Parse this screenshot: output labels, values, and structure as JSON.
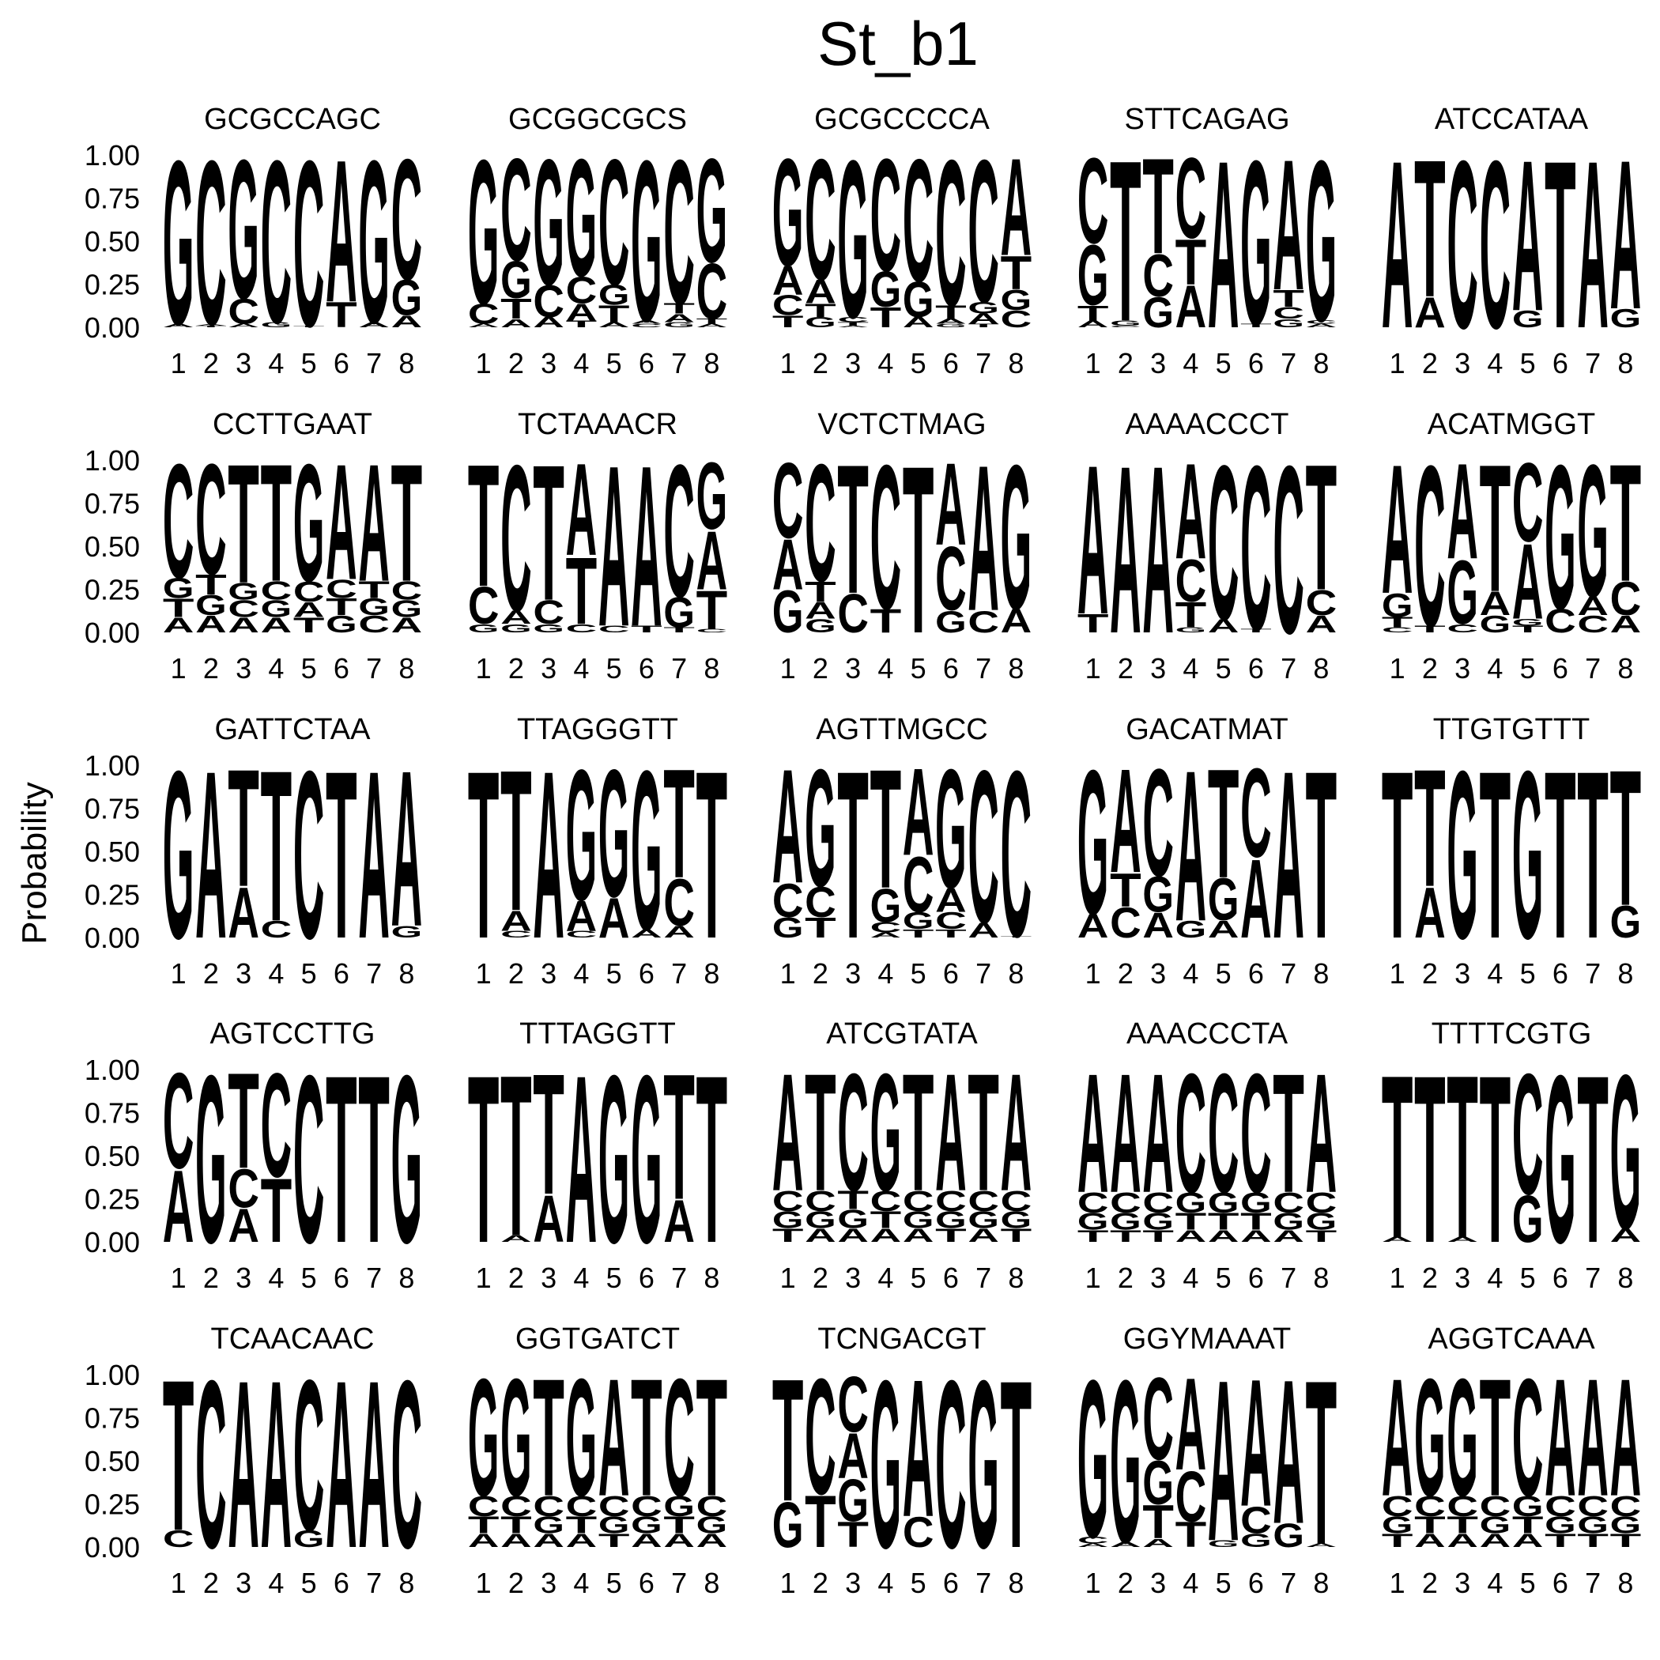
{
  "chart_data": {
    "type": "sequence-logo",
    "title": "St_b1",
    "ylabel": "Probability",
    "ylim": [
      0,
      1
    ],
    "y_ticks": [
      "0.00",
      "0.25",
      "0.50",
      "0.75",
      "1.00"
    ],
    "positions": [
      "1",
      "2",
      "3",
      "4",
      "5",
      "6",
      "7",
      "8"
    ],
    "colors": {
      "A": "#22c222",
      "C": "#1111ee",
      "G": "#f59c0a",
      "T": "#ee2a2a"
    },
    "motifs": [
      {
        "name": "GCGCCAGC",
        "pwm": [
          {
            "G": 0.98,
            "A": 0.02
          },
          {
            "C": 0.98,
            "T": 0.01,
            "A": 0.01
          },
          {
            "G": 0.83,
            "C": 0.15,
            "A": 0.02
          },
          {
            "C": 0.97,
            "G": 0.03
          },
          {
            "C": 0.99,
            "T": 0.01
          },
          {
            "A": 0.85,
            "T": 0.15
          },
          {
            "G": 0.97,
            "A": 0.03
          },
          {
            "C": 0.72,
            "G": 0.21,
            "A": 0.07
          }
        ]
      },
      {
        "name": "GCGGCGCS",
        "pwm": [
          {
            "G": 0.86,
            "C": 0.12,
            "A": 0.02
          },
          {
            "C": 0.61,
            "T": 0.12,
            "G": 0.22,
            "A": 0.05
          },
          {
            "G": 0.75,
            "C": 0.19,
            "A": 0.06
          },
          {
            "G": 0.7,
            "C": 0.16,
            "A": 0.1,
            "T": 0.04
          },
          {
            "C": 0.75,
            "T": 0.1,
            "G": 0.12,
            "A": 0.03
          },
          {
            "G": 0.96,
            "C": 0.02,
            "A": 0.02
          },
          {
            "C": 0.86,
            "T": 0.06,
            "A": 0.05,
            "G": 0.03
          },
          {
            "G": 0.62,
            "C": 0.33,
            "T": 0.03,
            "A": 0.02
          }
        ]
      },
      {
        "name": "GCGCCCCA",
        "pwm": [
          {
            "G": 0.64,
            "A": 0.17,
            "C": 0.12,
            "T": 0.07
          },
          {
            "C": 0.72,
            "A": 0.14,
            "T": 0.08,
            "G": 0.06
          },
          {
            "G": 0.94,
            "C": 0.03,
            "T": 0.02,
            "A": 0.01
          },
          {
            "C": 0.67,
            "T": 0.12,
            "G": 0.21
          },
          {
            "C": 0.73,
            "G": 0.21,
            "A": 0.06
          },
          {
            "C": 0.87,
            "T": 0.08,
            "A": 0.03,
            "G": 0.02
          },
          {
            "C": 0.85,
            "G": 0.07,
            "A": 0.06,
            "T": 0.02
          },
          {
            "A": 0.58,
            "T": 0.2,
            "G": 0.12,
            "C": 0.1
          }
        ]
      },
      {
        "name": "STTCAGAG",
        "pwm": [
          {
            "C": 0.51,
            "G": 0.36,
            "T": 0.09,
            "A": 0.04
          },
          {
            "T": 0.96,
            "G": 0.03,
            "C": 0.01
          },
          {
            "T": 0.57,
            "C": 0.25,
            "G": 0.18
          },
          {
            "C": 0.48,
            "A": 0.25,
            "T": 0.27
          },
          {
            "A": 1.0
          },
          {
            "G": 0.98,
            "T": 0.02
          },
          {
            "A": 0.78,
            "T": 0.1,
            "C": 0.07,
            "G": 0.05
          },
          {
            "G": 0.96,
            "A": 0.02,
            "C": 0.02
          }
        ]
      },
      {
        "name": "ATCCATAA",
        "pwm": [
          {
            "A": 1.0
          },
          {
            "T": 0.82,
            "A": 0.18
          },
          {
            "C": 1.0
          },
          {
            "C": 1.0
          },
          {
            "A": 0.9,
            "G": 0.1
          },
          {
            "T": 1.0
          },
          {
            "A": 1.0
          },
          {
            "A": 0.89,
            "G": 0.11
          }
        ]
      },
      {
        "name": "CCTTGAAT",
        "pwm": [
          {
            "C": 0.68,
            "G": 0.12,
            "T": 0.11,
            "A": 0.09
          },
          {
            "C": 0.66,
            "G": 0.12,
            "T": 0.12,
            "A": 0.1
          },
          {
            "T": 0.71,
            "C": 0.1,
            "G": 0.1,
            "A": 0.09
          },
          {
            "T": 0.7,
            "C": 0.11,
            "G": 0.1,
            "A": 0.09
          },
          {
            "G": 0.7,
            "C": 0.12,
            "T": 0.09,
            "A": 0.09
          },
          {
            "A": 0.69,
            "C": 0.11,
            "G": 0.1,
            "T": 0.1
          },
          {
            "A": 0.7,
            "C": 0.1,
            "G": 0.1,
            "T": 0.1
          },
          {
            "T": 0.7,
            "C": 0.11,
            "G": 0.1,
            "A": 0.09
          }
        ]
      },
      {
        "name": "TCTAAACR",
        "pwm": [
          {
            "T": 0.73,
            "C": 0.22,
            "G": 0.05
          },
          {
            "C": 0.87,
            "A": 0.08,
            "G": 0.05
          },
          {
            "T": 0.81,
            "C": 0.14,
            "G": 0.05
          },
          {
            "A": 0.55,
            "T": 0.4,
            "C": 0.05
          },
          {
            "A": 0.96,
            "C": 0.04
          },
          {
            "A": 0.96,
            "T": 0.04
          },
          {
            "C": 0.79,
            "G": 0.18,
            "T": 0.03
          },
          {
            "G": 0.4,
            "A": 0.35,
            "T": 0.23,
            "C": 0.02
          }
        ]
      },
      {
        "name": "VCTCTMAG",
        "pwm": [
          {
            "C": 0.45,
            "A": 0.3,
            "G": 0.25
          },
          {
            "C": 0.7,
            "T": 0.12,
            "A": 0.1,
            "G": 0.08
          },
          {
            "T": 0.77,
            "C": 0.23
          },
          {
            "C": 0.86,
            "T": 0.14
          },
          {
            "T": 1.0
          },
          {
            "A": 0.49,
            "C": 0.38,
            "G": 0.13
          },
          {
            "A": 0.87,
            "C": 0.13
          },
          {
            "G": 0.86,
            "A": 0.14
          }
        ]
      },
      {
        "name": "AAAACCCT",
        "pwm": [
          {
            "A": 0.89,
            "T": 0.11
          },
          {
            "A": 1.0
          },
          {
            "A": 1.0
          },
          {
            "A": 0.57,
            "C": 0.25,
            "T": 0.15,
            "G": 0.03
          },
          {
            "C": 0.92,
            "A": 0.08
          },
          {
            "C": 0.98,
            "T": 0.02
          },
          {
            "C": 1.0
          },
          {
            "T": 0.75,
            "C": 0.15,
            "A": 0.1
          }
        ]
      },
      {
        "name": "ACATMGGT",
        "pwm": [
          {
            "A": 0.77,
            "G": 0.14,
            "T": 0.06,
            "C": 0.03
          },
          {
            "C": 0.96,
            "T": 0.04
          },
          {
            "A": 0.57,
            "G": 0.38,
            "C": 0.05
          },
          {
            "T": 0.76,
            "A": 0.14,
            "G": 0.1
          },
          {
            "C": 0.47,
            "A": 0.45,
            "T": 0.04,
            "G": 0.04
          },
          {
            "G": 0.86,
            "C": 0.14
          },
          {
            "G": 0.79,
            "A": 0.11,
            "C": 0.1
          },
          {
            "T": 0.7,
            "C": 0.2,
            "A": 0.1
          }
        ]
      },
      {
        "name": "GATTCTAA",
        "pwm": [
          {
            "G": 1.0
          },
          {
            "A": 1.0
          },
          {
            "T": 0.7,
            "A": 0.3
          },
          {
            "T": 0.9,
            "C": 0.1
          },
          {
            "C": 1.0
          },
          {
            "T": 1.0
          },
          {
            "A": 1.0
          },
          {
            "A": 0.93,
            "G": 0.07
          }
        ]
      },
      {
        "name": "TTAGGGTT",
        "pwm": [
          {
            "T": 1.0
          },
          {
            "T": 0.84,
            "A": 0.12,
            "C": 0.04
          },
          {
            "A": 1.0
          },
          {
            "G": 0.78,
            "A": 0.18,
            "C": 0.04
          },
          {
            "G": 0.76,
            "A": 0.24
          },
          {
            "G": 0.95,
            "A": 0.05
          },
          {
            "T": 0.65,
            "C": 0.28,
            "A": 0.07
          },
          {
            "T": 1.0
          }
        ]
      },
      {
        "name": "AGTTMGCC",
        "pwm": [
          {
            "A": 0.68,
            "C": 0.2,
            "G": 0.12
          },
          {
            "G": 0.7,
            "C": 0.18,
            "T": 0.12
          },
          {
            "T": 1.0
          },
          {
            "T": 0.71,
            "G": 0.2,
            "C": 0.06,
            "A": 0.03
          },
          {
            "A": 0.52,
            "C": 0.33,
            "G": 0.1,
            "T": 0.05
          },
          {
            "G": 0.71,
            "A": 0.14,
            "C": 0.1,
            "T": 0.05
          },
          {
            "C": 0.91,
            "A": 0.09
          },
          {
            "C": 0.99,
            "T": 0.01
          }
        ]
      },
      {
        "name": "GACATMAT",
        "pwm": [
          {
            "G": 0.86,
            "A": 0.14
          },
          {
            "A": 0.62,
            "T": 0.2,
            "C": 0.18
          },
          {
            "C": 0.64,
            "G": 0.21,
            "A": 0.15
          },
          {
            "A": 0.9,
            "G": 0.1
          },
          {
            "T": 0.65,
            "G": 0.25,
            "A": 0.1
          },
          {
            "C": 0.53,
            "A": 0.47
          },
          {
            "A": 1.0
          },
          {
            "T": 1.0
          }
        ]
      },
      {
        "name": "TTGTGTTT",
        "pwm": [
          {
            "T": 1.0
          },
          {
            "T": 0.7,
            "A": 0.3
          },
          {
            "G": 1.0
          },
          {
            "T": 1.0
          },
          {
            "G": 1.0
          },
          {
            "T": 1.0
          },
          {
            "T": 1.0
          },
          {
            "T": 0.81,
            "G": 0.19
          }
        ]
      },
      {
        "name": "AGTCCTTG",
        "pwm": [
          {
            "A": 0.43,
            "C": 0.57
          },
          {
            "G": 1.0
          },
          {
            "T": 0.57,
            "C": 0.23,
            "C2": 0,
            "A": 0.2
          },
          {
            "C": 0.62,
            "T": 0.38
          },
          {
            "C": 1.0
          },
          {
            "T": 1.0
          },
          {
            "T": 1.0
          },
          {
            "G": 1.0
          }
        ]
      },
      {
        "name": "TTTAGGTT",
        "pwm": [
          {
            "T": 1.0
          },
          {
            "T": 0.96,
            "A": 0.04
          },
          {
            "T": 0.72,
            "A": 0.28
          },
          {
            "A": 1.0
          },
          {
            "G": 1.0
          },
          {
            "G": 1.0
          },
          {
            "T": 0.75,
            "A": 0.25
          },
          {
            "T": 1.0
          }
        ]
      },
      {
        "name": "ATCGTATA",
        "pwm": [
          {
            "A": 0.7,
            "C": 0.12,
            "G": 0.1,
            "T": 0.08
          },
          {
            "T": 0.7,
            "C": 0.12,
            "G": 0.1,
            "A": 0.08
          },
          {
            "C": 0.7,
            "G": 0.11,
            "T": 0.11,
            "A": 0.08
          },
          {
            "G": 0.7,
            "C": 0.12,
            "T": 0.1,
            "A": 0.08
          },
          {
            "T": 0.7,
            "C": 0.12,
            "G": 0.1,
            "A": 0.08
          },
          {
            "A": 0.7,
            "C": 0.12,
            "G": 0.1,
            "T": 0.08
          },
          {
            "T": 0.7,
            "C": 0.12,
            "G": 0.1,
            "A": 0.08
          },
          {
            "A": 0.7,
            "C": 0.12,
            "G": 0.1,
            "T": 0.08
          }
        ]
      },
      {
        "name": "AAACCCTA",
        "pwm": [
          {
            "A": 0.71,
            "C": 0.12,
            "G": 0.1,
            "T": 0.07
          },
          {
            "A": 0.71,
            "C": 0.12,
            "G": 0.1,
            "T": 0.07
          },
          {
            "A": 0.71,
            "C": 0.12,
            "G": 0.1,
            "T": 0.07
          },
          {
            "C": 0.71,
            "G": 0.12,
            "T": 0.1,
            "A": 0.07
          },
          {
            "C": 0.71,
            "G": 0.12,
            "T": 0.1,
            "A": 0.07
          },
          {
            "C": 0.71,
            "G": 0.12,
            "T": 0.1,
            "A": 0.07
          },
          {
            "T": 0.71,
            "C": 0.12,
            "G": 0.1,
            "A": 0.07
          },
          {
            "A": 0.71,
            "C": 0.12,
            "G": 0.1,
            "T": 0.07
          }
        ]
      },
      {
        "name": "TTTTCGTG",
        "pwm": [
          {
            "T": 0.97,
            "A": 0.03
          },
          {
            "T": 1.0
          },
          {
            "T": 0.97,
            "A": 0.03
          },
          {
            "T": 1.0
          },
          {
            "C": 0.72,
            "G": 0.28
          },
          {
            "G": 1.0
          },
          {
            "T": 1.0
          },
          {
            "G": 0.92,
            "A": 0.08
          }
        ]
      },
      {
        "name": "TCAACAAC",
        "pwm": [
          {
            "T": 0.9,
            "C": 0.1
          },
          {
            "C": 1.0
          },
          {
            "A": 1.0
          },
          {
            "A": 1.0
          },
          {
            "C": 0.9,
            "G": 0.1
          },
          {
            "A": 1.0
          },
          {
            "A": 1.0
          },
          {
            "C": 1.0
          }
        ]
      },
      {
        "name": "GGTGATCT",
        "pwm": [
          {
            "G": 0.7,
            "C": 0.12,
            "T": 0.1,
            "A": 0.08
          },
          {
            "G": 0.7,
            "C": 0.12,
            "T": 0.1,
            "A": 0.08
          },
          {
            "T": 0.7,
            "C": 0.12,
            "G": 0.1,
            "A": 0.08
          },
          {
            "G": 0.7,
            "C": 0.12,
            "T": 0.1,
            "A": 0.08
          },
          {
            "A": 0.7,
            "C": 0.12,
            "G": 0.1,
            "T": 0.08
          },
          {
            "T": 0.7,
            "C": 0.12,
            "G": 0.1,
            "A": 0.08
          },
          {
            "C": 0.7,
            "G": 0.12,
            "T": 0.1,
            "A": 0.08
          },
          {
            "T": 0.7,
            "C": 0.12,
            "G": 0.1,
            "A": 0.08
          }
        ]
      },
      {
        "name": "TCNGACGT",
        "pwm": [
          {
            "T": 0.73,
            "G": 0.27
          },
          {
            "C": 0.69,
            "T": 0.31
          },
          {
            "C": 0.33,
            "G": 0.25,
            "T": 0.15,
            "A": 0.27
          },
          {
            "G": 1.0
          },
          {
            "A": 0.82,
            "C": 0.18
          },
          {
            "C": 1.0
          },
          {
            "G": 1.0
          },
          {
            "T": 1.0
          }
        ]
      },
      {
        "name": "GGYMAAAT",
        "pwm": [
          {
            "G": 0.94,
            "C": 0.04,
            "A": 0.02
          },
          {
            "G": 0.97,
            "A": 0.03
          },
          {
            "C": 0.49,
            "T": 0.2,
            "G": 0.26,
            "A": 0.05
          },
          {
            "A": 0.55,
            "C": 0.3,
            "T": 0.15
          },
          {
            "A": 0.96,
            "G": 0.04
          },
          {
            "A": 0.76,
            "C": 0.16,
            "G": 0.08
          },
          {
            "A": 0.86,
            "G": 0.14
          },
          {
            "T": 0.98,
            "A": 0.02
          }
        ]
      },
      {
        "name": "AGGTCAAA",
        "pwm": [
          {
            "A": 0.7,
            "C": 0.12,
            "G": 0.1,
            "T": 0.08
          },
          {
            "G": 0.7,
            "C": 0.12,
            "T": 0.1,
            "A": 0.08
          },
          {
            "G": 0.7,
            "C": 0.12,
            "T": 0.1,
            "A": 0.08
          },
          {
            "T": 0.7,
            "C": 0.12,
            "G": 0.1,
            "A": 0.08
          },
          {
            "C": 0.7,
            "G": 0.12,
            "T": 0.1,
            "A": 0.08
          },
          {
            "A": 0.7,
            "C": 0.12,
            "G": 0.1,
            "T": 0.08
          },
          {
            "A": 0.7,
            "C": 0.12,
            "G": 0.1,
            "T": 0.08
          },
          {
            "A": 0.7,
            "C": 0.12,
            "G": 0.1,
            "T": 0.08
          }
        ]
      }
    ]
  }
}
